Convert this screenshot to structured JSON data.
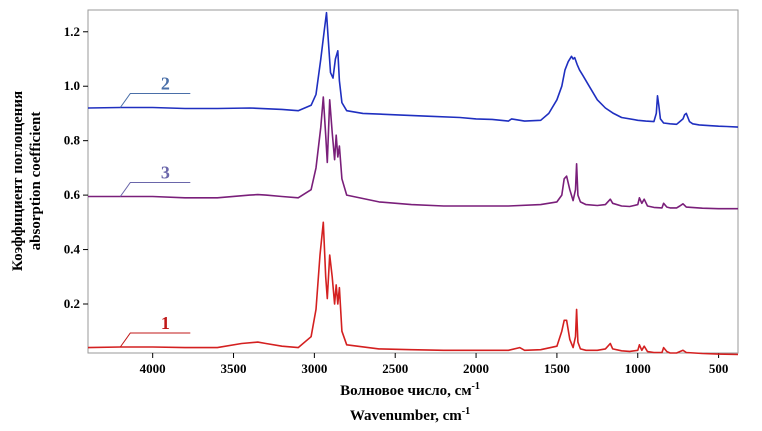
{
  "chart_data": {
    "type": "line",
    "title": "",
    "xlabel": "Волновое число, см",
    "xlabel_sup": "-1",
    "xlabel_en": "Wavenumber, cm",
    "xlabel_en_sup": "-1",
    "ylabel": "Коэффициент поглощения",
    "ylabel_en": "absorption coefficient",
    "x_reversed": true,
    "xlim": [
      4400,
      380
    ],
    "ylim": [
      0.02,
      1.28
    ],
    "xticks": [
      4000,
      3500,
      3000,
      2500,
      2000,
      1500,
      1000,
      500
    ],
    "yticks": [
      0.2,
      0.4,
      0.6,
      0.8,
      1.0,
      1.2
    ],
    "ytick_labels": [
      "0.2",
      "0.4",
      "0.6",
      "0.8",
      "1.0",
      "1.2"
    ],
    "grid": false,
    "series": [
      {
        "name": "2",
        "color": "#1f2fc0",
        "label_color": "#4a6fa8",
        "x": [
          4400,
          4200,
          4000,
          3800,
          3600,
          3400,
          3200,
          3100,
          3020,
          2990,
          2960,
          2940,
          2925,
          2915,
          2900,
          2885,
          2870,
          2855,
          2845,
          2830,
          2800,
          2700,
          2500,
          2300,
          2100,
          2000,
          1900,
          1800,
          1780,
          1700,
          1600,
          1550,
          1500,
          1470,
          1450,
          1430,
          1410,
          1400,
          1390,
          1375,
          1360,
          1340,
          1300,
          1250,
          1200,
          1150,
          1100,
          1000,
          950,
          900,
          885,
          878,
          870,
          860,
          840,
          800,
          760,
          740,
          720,
          710,
          700,
          690,
          680,
          660,
          620,
          550,
          500,
          450,
          380
        ],
        "y": [
          0.92,
          0.922,
          0.922,
          0.918,
          0.918,
          0.92,
          0.915,
          0.91,
          0.93,
          0.97,
          1.1,
          1.2,
          1.27,
          1.18,
          1.05,
          1.03,
          1.1,
          1.13,
          1.02,
          0.94,
          0.91,
          0.9,
          0.895,
          0.89,
          0.885,
          0.88,
          0.878,
          0.872,
          0.88,
          0.872,
          0.875,
          0.9,
          0.95,
          1.0,
          1.06,
          1.09,
          1.11,
          1.1,
          1.105,
          1.08,
          1.06,
          1.04,
          1.0,
          0.95,
          0.92,
          0.9,
          0.885,
          0.875,
          0.872,
          0.87,
          0.9,
          0.965,
          0.93,
          0.88,
          0.865,
          0.862,
          0.86,
          0.87,
          0.88,
          0.895,
          0.9,
          0.885,
          0.87,
          0.862,
          0.858,
          0.855,
          0.853,
          0.852,
          0.85
        ]
      },
      {
        "name": "3",
        "color": "#7a1f7a",
        "label_color": "#6a66aa",
        "x": [
          4400,
          4200,
          4000,
          3800,
          3600,
          3400,
          3350,
          3300,
          3200,
          3100,
          3020,
          2990,
          2960,
          2945,
          2930,
          2920,
          2905,
          2890,
          2875,
          2865,
          2855,
          2845,
          2830,
          2800,
          2600,
          2400,
          2200,
          2000,
          1800,
          1600,
          1500,
          1470,
          1455,
          1440,
          1420,
          1400,
          1385,
          1378,
          1370,
          1355,
          1320,
          1250,
          1200,
          1170,
          1155,
          1100,
          1050,
          1000,
          990,
          975,
          960,
          940,
          900,
          850,
          840,
          820,
          800,
          760,
          740,
          720,
          700,
          600,
          500,
          380
        ],
        "y": [
          0.595,
          0.595,
          0.595,
          0.59,
          0.59,
          0.6,
          0.602,
          0.6,
          0.595,
          0.59,
          0.62,
          0.7,
          0.85,
          0.96,
          0.82,
          0.72,
          0.95,
          0.83,
          0.73,
          0.82,
          0.74,
          0.78,
          0.66,
          0.6,
          0.575,
          0.565,
          0.56,
          0.56,
          0.56,
          0.565,
          0.575,
          0.6,
          0.66,
          0.67,
          0.62,
          0.58,
          0.62,
          0.715,
          0.6,
          0.575,
          0.565,
          0.562,
          0.565,
          0.585,
          0.57,
          0.56,
          0.558,
          0.565,
          0.59,
          0.57,
          0.585,
          0.56,
          0.555,
          0.553,
          0.57,
          0.556,
          0.553,
          0.553,
          0.56,
          0.568,
          0.556,
          0.552,
          0.55,
          0.55
        ]
      },
      {
        "name": "1",
        "color": "#d42020",
        "label_color": "#c01818",
        "x": [
          4400,
          4200,
          4000,
          3800,
          3600,
          3450,
          3350,
          3300,
          3200,
          3100,
          3020,
          2990,
          2965,
          2945,
          2930,
          2920,
          2905,
          2890,
          2875,
          2865,
          2855,
          2845,
          2830,
          2800,
          2600,
          2400,
          2200,
          2000,
          1800,
          1730,
          1700,
          1600,
          1500,
          1470,
          1455,
          1440,
          1420,
          1400,
          1385,
          1378,
          1370,
          1355,
          1320,
          1250,
          1200,
          1170,
          1155,
          1100,
          1050,
          1000,
          990,
          975,
          960,
          940,
          900,
          850,
          840,
          820,
          800,
          760,
          740,
          720,
          700,
          600,
          500,
          380
        ],
        "y": [
          0.04,
          0.042,
          0.042,
          0.04,
          0.04,
          0.055,
          0.06,
          0.055,
          0.045,
          0.04,
          0.08,
          0.18,
          0.38,
          0.5,
          0.3,
          0.22,
          0.38,
          0.3,
          0.2,
          0.27,
          0.2,
          0.26,
          0.1,
          0.05,
          0.035,
          0.032,
          0.03,
          0.03,
          0.03,
          0.04,
          0.03,
          0.032,
          0.045,
          0.1,
          0.14,
          0.14,
          0.07,
          0.04,
          0.08,
          0.18,
          0.06,
          0.035,
          0.03,
          0.03,
          0.035,
          0.055,
          0.035,
          0.028,
          0.026,
          0.03,
          0.05,
          0.03,
          0.045,
          0.025,
          0.022,
          0.022,
          0.04,
          0.025,
          0.02,
          0.02,
          0.025,
          0.03,
          0.022,
          0.018,
          0.016,
          0.015
        ]
      }
    ]
  }
}
